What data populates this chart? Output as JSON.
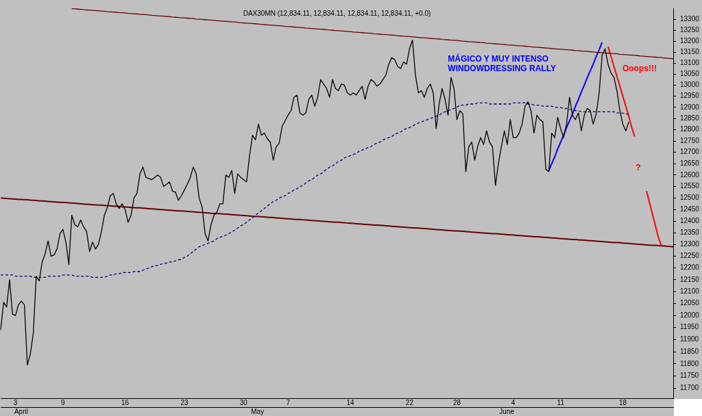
{
  "chart_data": {
    "type": "line",
    "title": "DAX30MN (12,834.11, 12,834.11, 12,834.11, 12,834.11, +0.0)",
    "log": true,
    "marker": "none",
    "categories": [
      null,
      null,
      null,
      null,
      null,
      "3",
      null,
      null,
      null,
      null,
      null,
      null,
      null,
      null,
      null,
      null,
      null,
      null,
      null,
      null,
      null,
      "9",
      null,
      null,
      null,
      null,
      null,
      null,
      null,
      null,
      null,
      null,
      null,
      null,
      null,
      null,
      null,
      null,
      null,
      null,
      null,
      null,
      "16",
      null,
      null,
      null,
      null,
      null,
      null,
      null,
      null,
      null,
      null,
      null,
      null,
      null,
      null,
      null,
      null,
      null,
      null,
      null,
      "23",
      null,
      null,
      null,
      null,
      null,
      null,
      null,
      null,
      null,
      null,
      null,
      null,
      null,
      null,
      null,
      null,
      null,
      null,
      null,
      "30",
      null,
      null,
      null,
      null,
      null,
      null,
      null,
      null,
      null,
      null,
      null,
      null,
      null,
      null,
      "7",
      null,
      null,
      null,
      null,
      null,
      null,
      null,
      null,
      null,
      null,
      null,
      null,
      null,
      null,
      null,
      null,
      null,
      null,
      null,
      null,
      "14",
      null,
      null,
      null,
      null,
      null,
      null,
      null,
      null,
      null,
      null,
      null,
      null,
      null,
      null,
      null,
      null,
      null,
      null,
      null,
      "22",
      null,
      null,
      null,
      null,
      null,
      null,
      null,
      null,
      null,
      null,
      null,
      null,
      null,
      null,
      null,
      "28",
      null,
      null,
      null,
      null,
      null,
      null,
      null,
      null,
      null,
      null,
      null,
      null,
      null,
      null,
      null,
      null,
      null,
      null,
      "4",
      null,
      null,
      null,
      null,
      null,
      null,
      null,
      null,
      null,
      null,
      null,
      null,
      null,
      null,
      null,
      "11",
      null,
      null,
      null,
      null,
      null,
      null,
      null,
      null,
      null,
      null,
      null,
      null,
      null,
      null,
      null,
      null,
      null,
      null,
      null,
      null,
      "18",
      null,
      null,
      null,
      null,
      null,
      null,
      null,
      null,
      null,
      null,
      null,
      null,
      null,
      null,
      null,
      null,
      null
    ],
    "ylim": [
      11660,
      13352
    ],
    "yticks": [
      11700,
      11750,
      11800,
      11850,
      11900,
      11950,
      12000,
      12050,
      12100,
      12150,
      12200,
      12250,
      12300,
      12350,
      12400,
      12450,
      12500,
      12550,
      12600,
      12650,
      12700,
      12750,
      12800,
      12850,
      12900,
      12950,
      13000,
      13050,
      13100,
      13150,
      13200,
      13250,
      13300
    ],
    "series": [
      {
        "color": "#000000",
        "values": [
          11940,
          12055,
          12035,
          12150,
          12005,
          12000,
          12045,
          12060,
          12045,
          11795,
          11840,
          11925,
          12165,
          12145,
          12225,
          12260,
          12315,
          12250,
          12255,
          12280,
          12345,
          12365,
          12310,
          12215,
          12425,
          12385,
          12375,
          12405,
          12375,
          12355,
          12270,
          12310,
          12280,
          12300,
          12355,
          12425,
          12460,
          12510,
          12520,
          12475,
          12455,
          12475,
          12450,
          12395,
          12425,
          12500,
          12520,
          12605,
          12635,
          12590,
          12585,
          12580,
          12590,
          12600,
          12590,
          12550,
          12560,
          12570,
          12530,
          12525,
          12490,
          12510,
          12535,
          12560,
          12590,
          12635,
          12605,
          12500,
          12460,
          12345,
          12315,
          12385,
          12425,
          12440,
          12475,
          12475,
          12600,
          12590,
          12620,
          12520,
          12605,
          12590,
          12580,
          12570,
          12685,
          12775,
          12755,
          12825,
          12775,
          12785,
          12760,
          12745,
          12665,
          12725,
          12740,
          12815,
          12840,
          12865,
          12885,
          12945,
          12955,
          12875,
          12865,
          12875,
          12935,
          12955,
          12905,
          12945,
          13025,
          13005,
          12985,
          12945,
          13025,
          12985,
          12975,
          13005,
          13000,
          12965,
          12955,
          12965,
          12955,
          12975,
          12995,
          12935,
          12995,
          13025,
          13015,
          12995,
          13005,
          13025,
          13045,
          13095,
          13125,
          13115,
          13085,
          13075,
          13105,
          13095,
          13165,
          13205,
          13045,
          12965,
          12975,
          12945,
          12985,
          13005,
          12965,
          12805,
          12915,
          12985,
          12935,
          12865,
          13035,
          12985,
          12845,
          12885,
          12870,
          12615,
          12725,
          12745,
          12665,
          12725,
          12765,
          12735,
          12795,
          12745,
          12725,
          12555,
          12650,
          12725,
          12795,
          12735,
          12845,
          12765,
          12765,
          12785,
          12825,
          12905,
          12925,
          12885,
          12785,
          12865,
          12845,
          12835,
          12625,
          12615,
          12785,
          12765,
          12855,
          12805,
          12765,
          12825,
          12945,
          12865,
          12845,
          12875,
          12795,
          12865,
          12895,
          12885,
          12825,
          12870,
          12965,
          13135,
          13165,
          13095,
          13055,
          13035,
          12975,
          12885,
          12825,
          12795,
          12835,
          null,
          null,
          null,
          null,
          null,
          null,
          null,
          null,
          null,
          null,
          null,
          null,
          null,
          null,
          null
        ]
      },
      {
        "color": "#000080",
        "line_style": "dashed",
        "values": [
          12170,
          12170,
          12170,
          12170,
          12170,
          12165,
          12165,
          12165,
          12165,
          12165,
          12165,
          12160,
          12160,
          12160,
          12160,
          12160,
          12165,
          12165,
          12165,
          12165,
          12165,
          12170,
          12170,
          12170,
          12170,
          12165,
          12165,
          12165,
          12165,
          12165,
          12165,
          12160,
          12160,
          12160,
          12160,
          12160,
          12165,
          12170,
          12170,
          12175,
          12175,
          12180,
          12180,
          12180,
          12180,
          12185,
          12185,
          12185,
          12190,
          12195,
          12200,
          12205,
          12210,
          12210,
          12215,
          12220,
          12220,
          12225,
          12225,
          12230,
          12235,
          12235,
          12245,
          12250,
          12260,
          12270,
          12280,
          12290,
          12295,
          12300,
          12305,
          12310,
          12315,
          12325,
          12330,
          12335,
          12340,
          12345,
          12355,
          12360,
          12370,
          12380,
          12385,
          12395,
          12405,
          12415,
          12425,
          12435,
          12445,
          12455,
          12465,
          12475,
          12485,
          12490,
          12500,
          12505,
          12510,
          12520,
          12525,
          12535,
          12540,
          12550,
          12555,
          12565,
          12575,
          12580,
          12590,
          12600,
          12605,
          12615,
          12625,
          12635,
          12640,
          12650,
          12660,
          12665,
          12675,
          12680,
          12685,
          12690,
          12695,
          12705,
          12710,
          12715,
          12720,
          12725,
          12735,
          12740,
          12745,
          12755,
          12760,
          12765,
          12770,
          12780,
          12785,
          12790,
          12800,
          12805,
          12810,
          12815,
          12825,
          12830,
          12835,
          12840,
          12845,
          12850,
          12855,
          12860,
          12865,
          12875,
          12880,
          12885,
          12890,
          12895,
          12900,
          12910,
          12910,
          12910,
          12915,
          12915,
          12915,
          12920,
          12920,
          12920,
          12920,
          12915,
          12915,
          12915,
          12915,
          12915,
          12915,
          12915,
          12915,
          12920,
          12920,
          12920,
          12920,
          12920,
          12915,
          12915,
          12910,
          12910,
          12910,
          12905,
          12905,
          12905,
          12905,
          12900,
          12900,
          12900,
          12895,
          12895,
          12890,
          12890,
          12885,
          12885,
          12880,
          12880,
          12880,
          12880,
          12880,
          12880,
          12880,
          12880,
          12880,
          12880,
          12880,
          12880,
          12875,
          12875,
          12875,
          12870,
          12870,
          null,
          null,
          null,
          null,
          null,
          null,
          null,
          null,
          null,
          null,
          null,
          null,
          null,
          null,
          null
        ]
      },
      {
        "color": "#660000",
        "values": [
          null,
          null,
          null,
          null,
          null,
          null,
          null,
          null,
          null,
          null,
          null,
          null,
          null,
          null,
          null,
          null,
          null,
          null,
          null,
          null,
          null,
          null,
          null,
          null,
          13350,
          13349,
          13348,
          13347,
          13345,
          13344,
          13343,
          13342,
          13341,
          13340,
          13339,
          13338,
          13336,
          13335,
          13334,
          13333,
          13332,
          13331,
          13330,
          13328,
          13327,
          13326,
          13325,
          13324,
          13323,
          13322,
          13321,
          13319,
          13318,
          13317,
          13316,
          13315,
          13314,
          13313,
          13311,
          13310,
          13309,
          13308,
          13307,
          13306,
          13305,
          13304,
          13302,
          13301,
          13300,
          13299,
          13298,
          13297,
          13296,
          13294,
          13293,
          13292,
          13291,
          13290,
          13289,
          13288,
          13287,
          13285,
          13284,
          13283,
          13282,
          13281,
          13280,
          13279,
          13277,
          13276,
          13275,
          13274,
          13273,
          13272,
          13271,
          13270,
          13268,
          13267,
          13266,
          13265,
          13264,
          13263,
          13262,
          13260,
          13259,
          13258,
          13257,
          13256,
          13255,
          13254,
          13253,
          13251,
          13250,
          13249,
          13248,
          13247,
          13246,
          13245,
          13244,
          13242,
          13241,
          13240,
          13239,
          13238,
          13237,
          13236,
          13234,
          13233,
          13232,
          13231,
          13230,
          13229,
          13228,
          13227,
          13225,
          13224,
          13223,
          13222,
          13221,
          13220,
          13219,
          13217,
          13216,
          13215,
          13214,
          13213,
          13212,
          13211,
          13210,
          13208,
          13207,
          13206,
          13205,
          13204,
          13203,
          13202,
          13200,
          13199,
          13198,
          13197,
          13196,
          13195,
          13194,
          13193,
          13191,
          13190,
          13189,
          13188,
          13187,
          13186,
          13185,
          13183,
          13182,
          13181,
          13180,
          13179,
          13178,
          13177,
          13176,
          13174,
          13173,
          13172,
          13171,
          13170,
          13169,
          13168,
          13166,
          13165,
          13164,
          13163,
          13162,
          13161,
          13160,
          13159,
          13157,
          13156,
          13155,
          13154,
          13153,
          13152,
          13151,
          13149,
          13148,
          13147,
          13146,
          13145,
          13144,
          13143,
          13142,
          13140,
          13139,
          13138,
          13137,
          13136,
          13135,
          13134,
          13132,
          13131,
          13130,
          13129,
          13128,
          13127,
          13126,
          13125,
          13123,
          13122,
          13121,
          13120
        ]
      },
      {
        "color": "#660000",
        "values": [
          12500,
          12499,
          12498,
          12497,
          12496,
          12495,
          12494,
          12494,
          12493,
          12492,
          12491,
          12490,
          12489,
          12488,
          12487,
          12486,
          12485,
          12484,
          12483,
          12482,
          12481,
          12481,
          12480,
          12479,
          12478,
          12477,
          12476,
          12475,
          12474,
          12473,
          12472,
          12471,
          12470,
          12469,
          12469,
          12468,
          12467,
          12466,
          12465,
          12464,
          12463,
          12462,
          12461,
          12460,
          12459,
          12458,
          12457,
          12457,
          12456,
          12455,
          12454,
          12453,
          12452,
          12451,
          12450,
          12449,
          12448,
          12447,
          12446,
          12445,
          12444,
          12444,
          12443,
          12442,
          12441,
          12440,
          12439,
          12438,
          12437,
          12436,
          12435,
          12434,
          12433,
          12432,
          12432,
          12431,
          12430,
          12429,
          12428,
          12427,
          12426,
          12425,
          12424,
          12423,
          12422,
          12421,
          12420,
          12420,
          12419,
          12418,
          12417,
          12416,
          12415,
          12414,
          12413,
          12412,
          12411,
          12410,
          12409,
          12408,
          12407,
          12407,
          12406,
          12405,
          12404,
          12403,
          12402,
          12401,
          12400,
          12399,
          12398,
          12397,
          12396,
          12395,
          12395,
          12394,
          12393,
          12392,
          12391,
          12390,
          12389,
          12388,
          12387,
          12386,
          12385,
          12384,
          12383,
          12383,
          12382,
          12381,
          12380,
          12379,
          12378,
          12377,
          12376,
          12375,
          12374,
          12373,
          12372,
          12371,
          12370,
          12370,
          12369,
          12368,
          12367,
          12366,
          12365,
          12364,
          12363,
          12362,
          12361,
          12360,
          12359,
          12358,
          12358,
          12357,
          12356,
          12355,
          12354,
          12353,
          12352,
          12351,
          12350,
          12349,
          12348,
          12347,
          12346,
          12346,
          12345,
          12344,
          12343,
          12342,
          12341,
          12340,
          12339,
          12338,
          12337,
          12336,
          12335,
          12334,
          12333,
          12333,
          12332,
          12331,
          12330,
          12329,
          12328,
          12327,
          12326,
          12325,
          12324,
          12323,
          12322,
          12321,
          12321,
          12320,
          12319,
          12318,
          12317,
          12316,
          12315,
          12314,
          12313,
          12312,
          12311,
          12310,
          12309,
          12308,
          12308,
          12307,
          12306,
          12305,
          12304,
          12303,
          12302,
          12301,
          12300,
          12299,
          12298,
          12297,
          12296,
          12296,
          12295,
          12294,
          12293,
          12292,
          12291,
          12290
        ]
      },
      {
        "color": "#0000ff",
        "values": [
          null,
          null,
          null,
          null,
          null,
          null,
          null,
          null,
          null,
          null,
          null,
          null,
          null,
          null,
          null,
          null,
          null,
          null,
          null,
          null,
          null,
          null,
          null,
          null,
          null,
          null,
          null,
          null,
          null,
          null,
          null,
          null,
          null,
          null,
          null,
          null,
          null,
          null,
          null,
          null,
          null,
          null,
          null,
          null,
          null,
          null,
          null,
          null,
          null,
          null,
          null,
          null,
          null,
          null,
          null,
          null,
          null,
          null,
          null,
          null,
          null,
          null,
          null,
          null,
          null,
          null,
          null,
          null,
          null,
          null,
          null,
          null,
          null,
          null,
          null,
          null,
          null,
          null,
          null,
          null,
          null,
          null,
          null,
          null,
          null,
          null,
          null,
          null,
          null,
          null,
          null,
          null,
          null,
          null,
          null,
          null,
          null,
          null,
          null,
          null,
          null,
          null,
          null,
          null,
          null,
          null,
          null,
          null,
          null,
          null,
          null,
          null,
          null,
          null,
          null,
          null,
          null,
          null,
          null,
          null,
          null,
          null,
          null,
          null,
          null,
          null,
          null,
          null,
          null,
          null,
          null,
          null,
          null,
          null,
          null,
          null,
          null,
          null,
          null,
          null,
          null,
          null,
          null,
          null,
          null,
          null,
          null,
          null,
          null,
          null,
          null,
          null,
          null,
          null,
          null,
          null,
          null,
          null,
          null,
          null,
          null,
          null,
          null,
          null,
          null,
          null,
          null,
          null,
          null,
          null,
          null,
          null,
          null,
          null,
          null,
          null,
          null,
          null,
          null,
          null,
          null,
          null,
          null,
          null,
          null,
          12620,
          12650,
          12680,
          12715,
          12745,
          12775,
          12810,
          12840,
          12870,
          12905,
          12935,
          12970,
          13000,
          13035,
          13065,
          13095,
          13130,
          13160,
          13195,
          null,
          null,
          null,
          null,
          null,
          null,
          null,
          null,
          null,
          null,
          null,
          null,
          null,
          null,
          null,
          null,
          null,
          null,
          null,
          null,
          null,
          null,
          null,
          null
        ]
      },
      {
        "color": "#ff0000",
        "values": [
          null,
          null,
          null,
          null,
          null,
          null,
          null,
          null,
          null,
          null,
          null,
          null,
          null,
          null,
          null,
          null,
          null,
          null,
          null,
          null,
          null,
          null,
          null,
          null,
          null,
          null,
          null,
          null,
          null,
          null,
          null,
          null,
          null,
          null,
          null,
          null,
          null,
          null,
          null,
          null,
          null,
          null,
          null,
          null,
          null,
          null,
          null,
          null,
          null,
          null,
          null,
          null,
          null,
          null,
          null,
          null,
          null,
          null,
          null,
          null,
          null,
          null,
          null,
          null,
          null,
          null,
          null,
          null,
          null,
          null,
          null,
          null,
          null,
          null,
          null,
          null,
          null,
          null,
          null,
          null,
          null,
          null,
          null,
          null,
          null,
          null,
          null,
          null,
          null,
          null,
          null,
          null,
          null,
          null,
          null,
          null,
          null,
          null,
          null,
          null,
          null,
          null,
          null,
          null,
          null,
          null,
          null,
          null,
          null,
          null,
          null,
          null,
          null,
          null,
          null,
          null,
          null,
          null,
          null,
          null,
          null,
          null,
          null,
          null,
          null,
          null,
          null,
          null,
          null,
          null,
          null,
          null,
          null,
          null,
          null,
          null,
          null,
          null,
          null,
          null,
          null,
          null,
          null,
          null,
          null,
          null,
          null,
          null,
          null,
          null,
          null,
          null,
          null,
          null,
          null,
          null,
          null,
          null,
          null,
          null,
          null,
          null,
          null,
          null,
          null,
          null,
          null,
          null,
          null,
          null,
          null,
          null,
          null,
          null,
          null,
          null,
          null,
          null,
          null,
          null,
          null,
          null,
          null,
          null,
          null,
          null,
          null,
          null,
          null,
          null,
          null,
          null,
          null,
          null,
          null,
          null,
          null,
          null,
          null,
          null,
          null,
          null,
          null,
          null,
          null,
          13175,
          13130,
          13085,
          13040,
          12995,
          12950,
          12905,
          12860,
          12810,
          12770,
          null,
          null,
          null,
          null,
          null,
          null,
          null,
          null,
          null,
          null,
          null,
          null,
          null
        ]
      },
      {
        "color": "#ff0000",
        "values": [
          null,
          null,
          null,
          null,
          null,
          null,
          null,
          null,
          null,
          null,
          null,
          null,
          null,
          null,
          null,
          null,
          null,
          null,
          null,
          null,
          null,
          null,
          null,
          null,
          null,
          null,
          null,
          null,
          null,
          null,
          null,
          null,
          null,
          null,
          null,
          null,
          null,
          null,
          null,
          null,
          null,
          null,
          null,
          null,
          null,
          null,
          null,
          null,
          null,
          null,
          null,
          null,
          null,
          null,
          null,
          null,
          null,
          null,
          null,
          null,
          null,
          null,
          null,
          null,
          null,
          null,
          null,
          null,
          null,
          null,
          null,
          null,
          null,
          null,
          null,
          null,
          null,
          null,
          null,
          null,
          null,
          null,
          null,
          null,
          null,
          null,
          null,
          null,
          null,
          null,
          null,
          null,
          null,
          null,
          null,
          null,
          null,
          null,
          null,
          null,
          null,
          null,
          null,
          null,
          null,
          null,
          null,
          null,
          null,
          null,
          null,
          null,
          null,
          null,
          null,
          null,
          null,
          null,
          null,
          null,
          null,
          null,
          null,
          null,
          null,
          null,
          null,
          null,
          null,
          null,
          null,
          null,
          null,
          null,
          null,
          null,
          null,
          null,
          null,
          null,
          null,
          null,
          null,
          null,
          null,
          null,
          null,
          null,
          null,
          null,
          null,
          null,
          null,
          null,
          null,
          null,
          null,
          null,
          null,
          null,
          null,
          null,
          null,
          null,
          null,
          null,
          null,
          null,
          null,
          null,
          null,
          null,
          null,
          null,
          null,
          null,
          null,
          null,
          null,
          null,
          null,
          null,
          null,
          null,
          null,
          null,
          null,
          null,
          null,
          null,
          null,
          null,
          null,
          null,
          null,
          null,
          null,
          null,
          null,
          null,
          null,
          null,
          null,
          null,
          null,
          null,
          null,
          null,
          null,
          null,
          null,
          null,
          null,
          null,
          null,
          null,
          null,
          null,
          12530,
          12480,
          12430,
          12380,
          12330,
          12295,
          null,
          null,
          null,
          null
        ]
      }
    ],
    "annotations": [
      "MÁGICO Y MUY INTENSO\nWINDOWDRESSING RALLY",
      "Ooops!!!",
      "?",
      "April",
      "May",
      "June"
    ]
  }
}
